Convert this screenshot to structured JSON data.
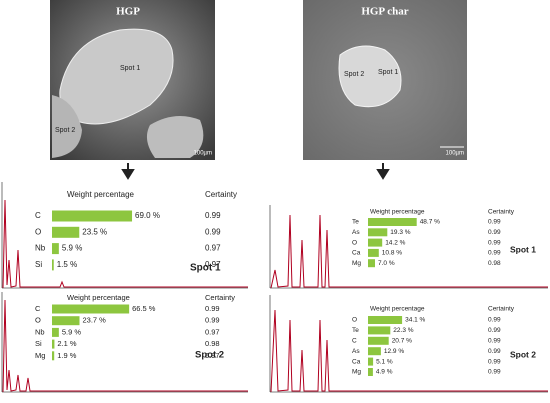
{
  "images": [
    {
      "title": "HGP",
      "spots": [
        "Spot 1",
        "Spot 2"
      ],
      "scale": "100µm"
    },
    {
      "title": "HGP char",
      "spots": [
        "Spot 2",
        "Spot 1"
      ],
      "scale": "100µm"
    }
  ],
  "panels": [
    {
      "header": "Weight percentage",
      "certainty_header": "Certainty",
      "spot": "Spot 1",
      "rows": [
        {
          "element": "C",
          "value": 69.0,
          "value_label": "69.0 %",
          "certainty": 0.99
        },
        {
          "element": "O",
          "value": 23.5,
          "value_label": "23.5 %",
          "certainty": 0.99
        },
        {
          "element": "Nb",
          "value": 5.9,
          "value_label": "5.9 %",
          "certainty": 0.97
        },
        {
          "element": "Si",
          "value": 1.5,
          "value_label": "1.5 %",
          "certainty": 0.97
        }
      ]
    },
    {
      "header": "Weight percentage",
      "certainty_header": "Certainty",
      "spot": "Spot 2",
      "rows": [
        {
          "element": "C",
          "value": 66.5,
          "value_label": "66.5 %",
          "certainty": 0.99
        },
        {
          "element": "O",
          "value": 23.7,
          "value_label": "23.7 %",
          "certainty": 0.99
        },
        {
          "element": "Nb",
          "value": 5.9,
          "value_label": "5.9 %",
          "certainty": 0.97
        },
        {
          "element": "Si",
          "value": 2.1,
          "value_label": "2.1 %",
          "certainty": 0.98
        },
        {
          "element": "Mg",
          "value": 1.9,
          "value_label": "1.9 %",
          "certainty": 0.97
        }
      ]
    },
    {
      "header": "Weight percentage",
      "certainty_header": "Certainty",
      "spot": "Spot 1",
      "rows": [
        {
          "element": "Te",
          "value": 48.7,
          "value_label": "48.7 %",
          "certainty": 0.99
        },
        {
          "element": "As",
          "value": 19.3,
          "value_label": "19.3 %",
          "certainty": 0.99
        },
        {
          "element": "O",
          "value": 14.2,
          "value_label": "14.2 %",
          "certainty": 0.99
        },
        {
          "element": "Ca",
          "value": 10.8,
          "value_label": "10.8 %",
          "certainty": 0.99
        },
        {
          "element": "Mg",
          "value": 7.0,
          "value_label": "7.0 %",
          "certainty": 0.98
        }
      ]
    },
    {
      "header": "Weight percentage",
      "certainty_header": "Certainty",
      "spot": "Spot 2",
      "rows": [
        {
          "element": "O",
          "value": 34.1,
          "value_label": "34.1 %",
          "certainty": 0.99
        },
        {
          "element": "Te",
          "value": 22.3,
          "value_label": "22.3 %",
          "certainty": 0.99
        },
        {
          "element": "C",
          "value": 20.7,
          "value_label": "20.7 %",
          "certainty": 0.99
        },
        {
          "element": "As",
          "value": 12.9,
          "value_label": "12.9 %",
          "certainty": 0.99
        },
        {
          "element": "Ca",
          "value": 5.1,
          "value_label": "5.1 %",
          "certainty": 0.99
        },
        {
          "element": "Mg",
          "value": 4.9,
          "value_label": "4.9 %",
          "certainty": 0.99
        }
      ]
    }
  ]
}
